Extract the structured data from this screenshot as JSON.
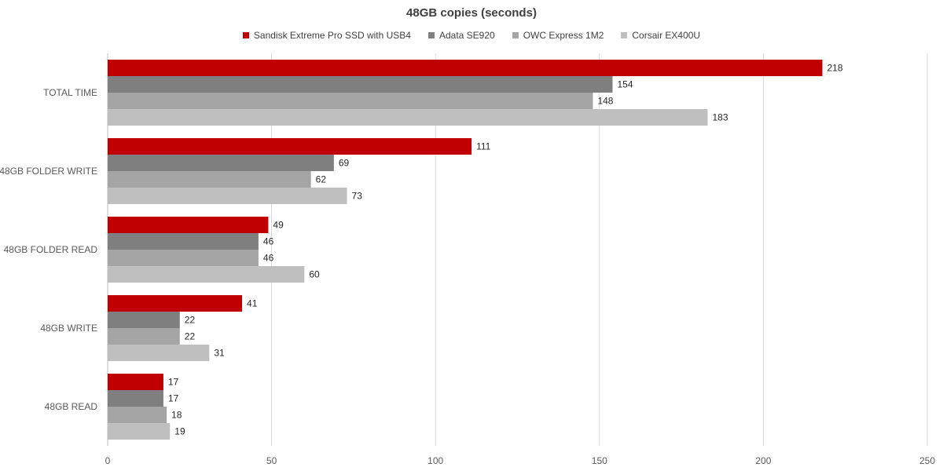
{
  "chart_data": {
    "type": "bar",
    "orientation": "horizontal",
    "title": "48GB copies (seconds)",
    "categories": [
      "TOTAL TIME",
      "48GB FOLDER WRITE",
      "48GB FOLDER READ",
      "48GB WRITE",
      "48GB READ"
    ],
    "series": [
      {
        "name": "Sandisk Extreme Pro SSD with USB4",
        "color": "#c00000",
        "values": [
          218,
          111,
          49,
          41,
          17
        ]
      },
      {
        "name": "Adata SE920",
        "color": "#7f7f7f",
        "values": [
          154,
          69,
          46,
          22,
          17
        ]
      },
      {
        "name": "OWC Express 1M2",
        "color": "#a5a5a5",
        "values": [
          148,
          62,
          46,
          22,
          18
        ]
      },
      {
        "name": "Corsair EX400U",
        "color": "#bfbfbf",
        "values": [
          183,
          73,
          60,
          31,
          19
        ]
      }
    ],
    "xlim": [
      0,
      250
    ],
    "xticks": [
      "0",
      "50",
      "100",
      "150",
      "200",
      "250"
    ],
    "xlabel": "",
    "ylabel": "",
    "grid": true,
    "legend_position": "top"
  }
}
